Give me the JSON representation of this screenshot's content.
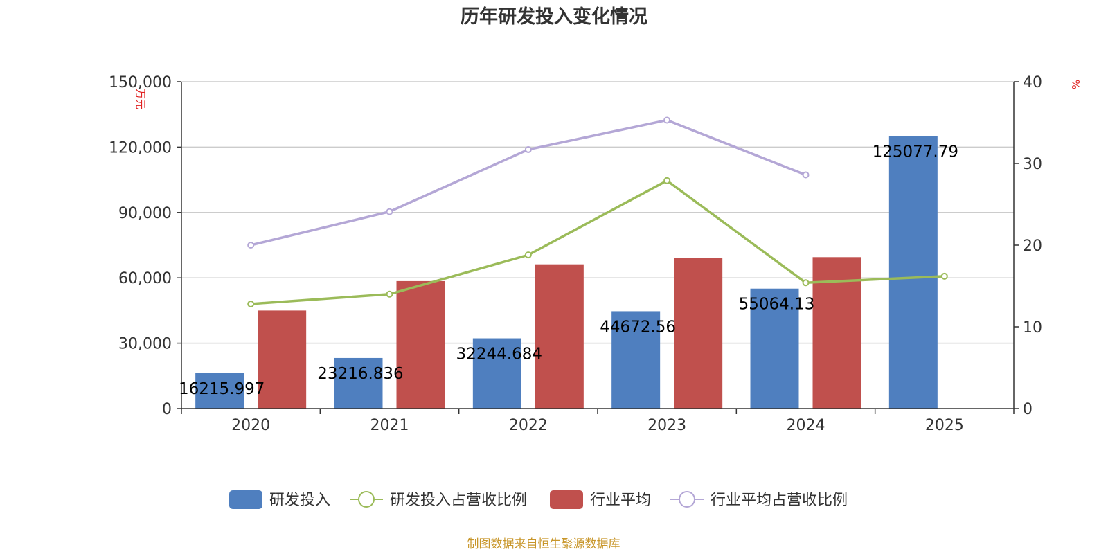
{
  "title": "历年研发投入变化情况",
  "footer": "制图数据来自恒生聚源数据库",
  "colors": {
    "rd_bar": "#4f7fbf",
    "industry_bar": "#c0504d",
    "rd_ratio_line": "#9bbb59",
    "industry_ratio_line": "#b4a7d6"
  },
  "chart_data": {
    "type": "bar",
    "categories": [
      "2020",
      "2021",
      "2022",
      "2023",
      "2024",
      "2025"
    ],
    "y_left": {
      "unit": "万元",
      "ylim": [
        0,
        150000
      ],
      "ticks": [
        "0",
        "30,000",
        "60,000",
        "90,000",
        "120,000",
        "150,000"
      ]
    },
    "y_right": {
      "unit": "%",
      "ylim": [
        0,
        40
      ],
      "ticks": [
        "0",
        "10",
        "20",
        "30",
        "40"
      ]
    },
    "grid": true,
    "legend_position": "bottom",
    "series": [
      {
        "name": "研发投入",
        "type": "bar",
        "axis": "left",
        "values": [
          16215.997,
          23216.836,
          32244.684,
          44672.56,
          55064.13,
          125077.79
        ],
        "labels": [
          "16215.997",
          "23216.836",
          "32244.684",
          "44672.56",
          "55064.13",
          "125077.79"
        ]
      },
      {
        "name": "研发投入占营收比例",
        "type": "line",
        "axis": "right",
        "values": [
          12.8,
          14.0,
          18.8,
          27.9,
          15.4,
          16.2
        ]
      },
      {
        "name": "行业平均",
        "type": "bar",
        "axis": "left",
        "values": [
          45000,
          58500,
          66200,
          69000,
          69500,
          null
        ]
      },
      {
        "name": "行业平均占营收比例",
        "type": "line",
        "axis": "right",
        "values": [
          20.0,
          24.1,
          31.7,
          35.3,
          28.6,
          null
        ]
      }
    ]
  }
}
